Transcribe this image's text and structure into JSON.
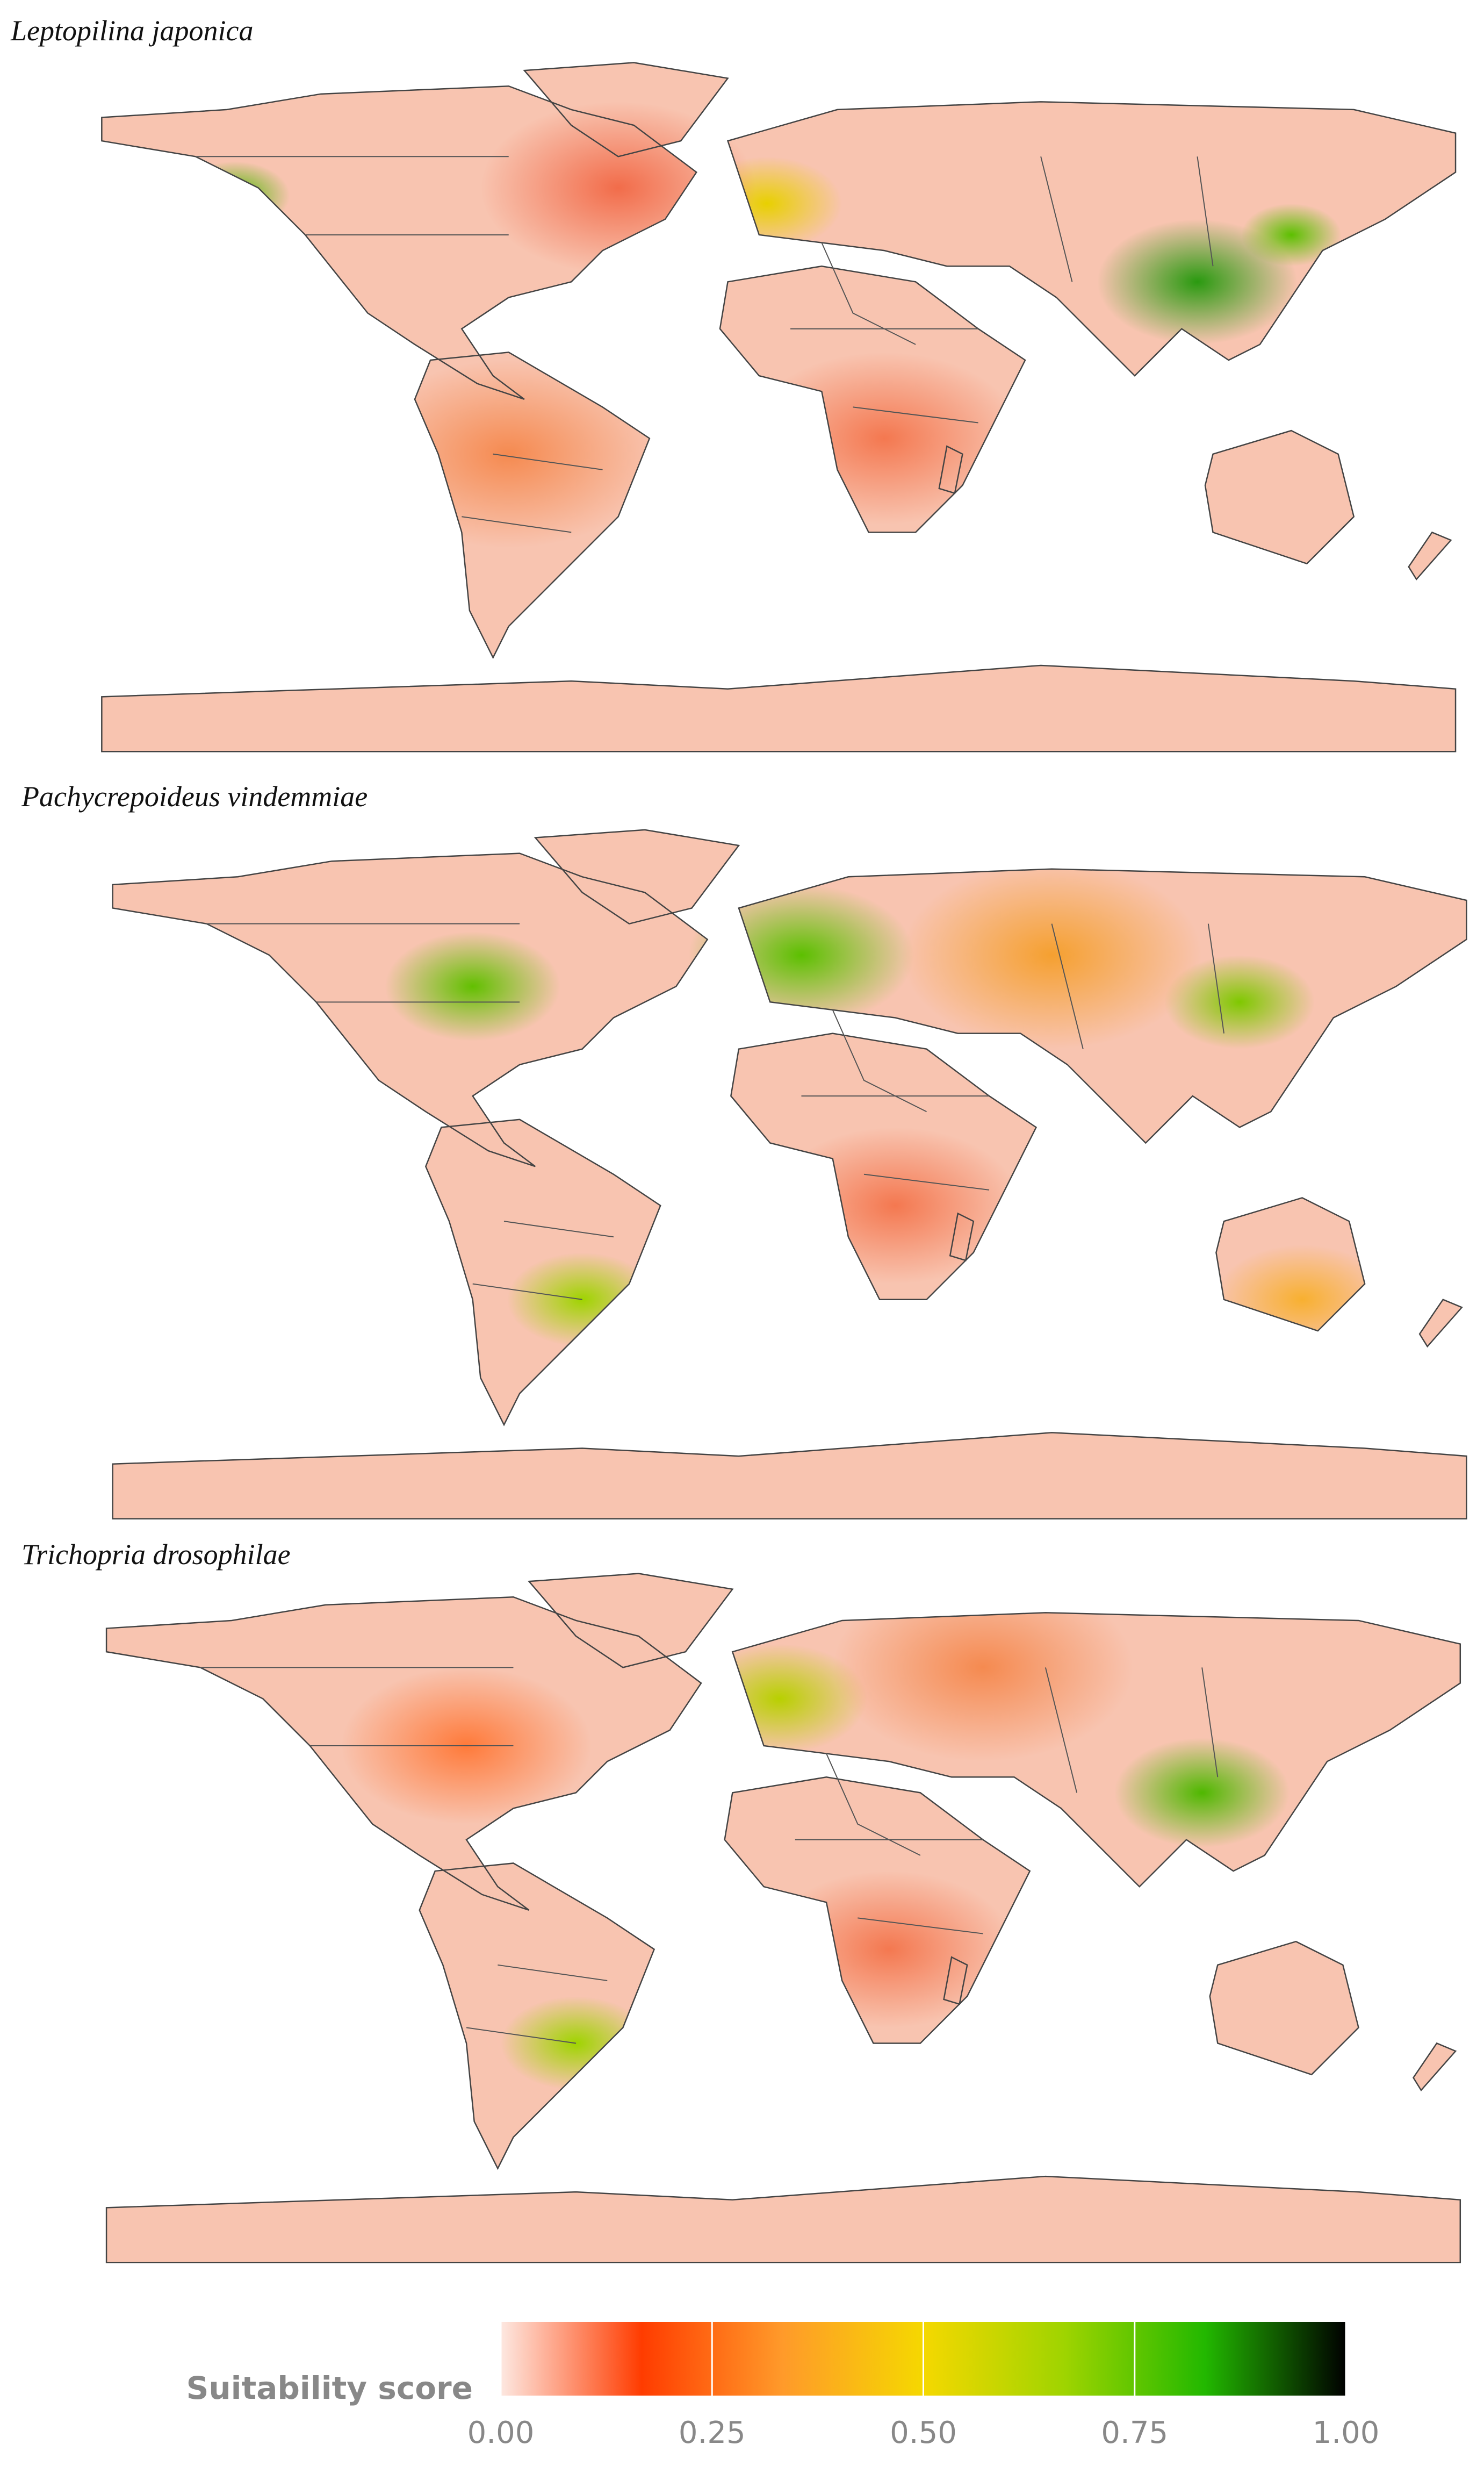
{
  "panels": [
    {
      "title": "Leptopilina japonica"
    },
    {
      "title": "Pachycrepoideus vindemmiae"
    },
    {
      "title": "Trichopria drosophilae"
    }
  ],
  "legend": {
    "title": "Suitability score",
    "colors": [
      "#fde8e1",
      "#ff3c00",
      "#ff9a2a",
      "#f5d800",
      "#9fd400",
      "#22b800",
      "#000000"
    ],
    "ticks": [
      {
        "value": 0,
        "label": "0.00"
      },
      {
        "value": 0.25,
        "label": "0.25"
      },
      {
        "value": 0.5,
        "label": "0.50"
      },
      {
        "value": 0.75,
        "label": "0.75"
      },
      {
        "value": 1,
        "label": "1.00"
      }
    ]
  }
}
